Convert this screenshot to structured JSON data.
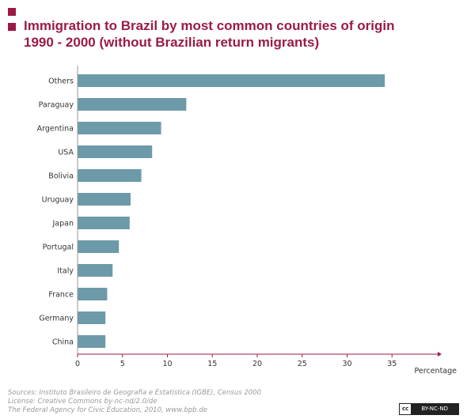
{
  "header": {
    "title_line1": "Immigration to Brazil by most common countries of origin",
    "title_line2": "1990 - 2000 (without Brazilian return migrants)"
  },
  "colors": {
    "accent": "#9b1b45",
    "bar": "#6d9aa8",
    "axis": "#9b1b45"
  },
  "chart_data": {
    "type": "bar",
    "orientation": "horizontal",
    "title": "Immigration to Brazil by most common countries of origin 1990 - 2000 (without Brazilian return migrants)",
    "xlabel": "Percentage",
    "ylabel": "",
    "xlim": [
      0,
      39
    ],
    "xticks": [
      0,
      5,
      10,
      15,
      20,
      25,
      30,
      35
    ],
    "grid": false,
    "categories": [
      "Others",
      "Paraguay",
      "Argentina",
      "USA",
      "Bolivia",
      "Uruguay",
      "Japan",
      "Portugal",
      "Italy",
      "France",
      "Germany",
      "China"
    ],
    "values": [
      34.2,
      12.1,
      9.3,
      8.3,
      7.1,
      5.9,
      5.8,
      4.6,
      3.9,
      3.3,
      3.1,
      3.1
    ]
  },
  "footer": {
    "source": "Sources: Instituto Brasileiro de Geografia e Estatística (IGBE), Census 2000",
    "license": "License: Creative Commons by-nc-nd/2.0/de",
    "publisher": "The Federal Agency for Civic Education, 2010, www.bpb.de",
    "badge_cc": "cc",
    "badge_terms": "BY-NC-ND"
  }
}
